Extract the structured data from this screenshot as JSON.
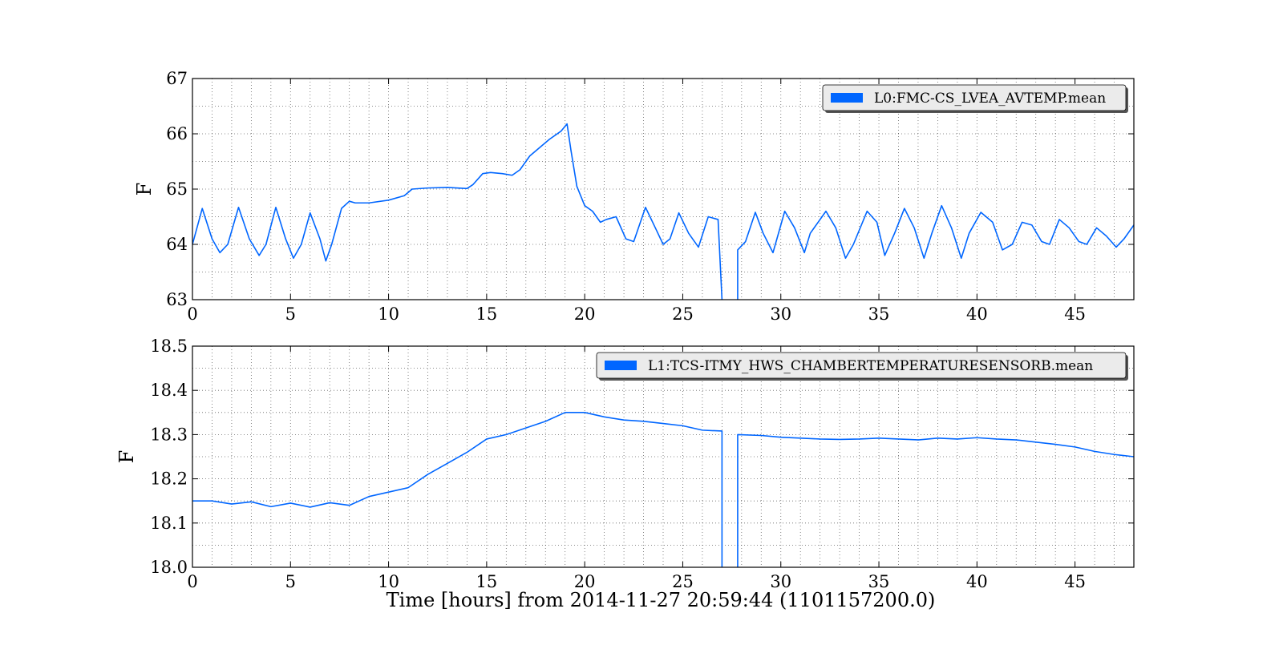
{
  "figure": {
    "xlabel": "Time [hours] from 2014-11-27 20:59:44 (1101157200.0)"
  },
  "chart_data": [
    {
      "type": "line",
      "ylabel": "F",
      "xlim": [
        0,
        48
      ],
      "ylim": [
        63,
        67
      ],
      "xticks": [
        0,
        5,
        10,
        15,
        20,
        25,
        30,
        35,
        40,
        45
      ],
      "xtick_labels": [
        "0",
        "5",
        "10",
        "15",
        "20",
        "25",
        "30",
        "35",
        "40",
        "45"
      ],
      "yticks": [
        63,
        64,
        65,
        66,
        67
      ],
      "ytick_labels": [
        "63",
        "64",
        "65",
        "66",
        "67"
      ],
      "grid": true,
      "legend_position": "top-right",
      "color": "#0066ff",
      "series": [
        {
          "name": "L0:FMC-CS_LVEA_AVTEMP.mean",
          "x": [
            0,
            0.5,
            1.0,
            1.4,
            1.8,
            2.35,
            2.9,
            3.4,
            3.75,
            4.25,
            4.75,
            5.15,
            5.55,
            6.0,
            6.5,
            6.8,
            7.1,
            7.6,
            8.0,
            8.3,
            9.0,
            10.0,
            10.8,
            11.2,
            12.0,
            13.0,
            14.0,
            14.3,
            14.8,
            15.2,
            15.8,
            16.3,
            16.7,
            17.2,
            18.2,
            18.8,
            19.1,
            19.3,
            19.6,
            20.0,
            20.4,
            20.8,
            21.1,
            21.6,
            22.1,
            22.5,
            23.1,
            23.6,
            24.0,
            24.35,
            24.8,
            25.3,
            25.8,
            26.3,
            26.8,
            27.0,
            27.0,
            null,
            27.8,
            27.8,
            28.2,
            28.7,
            29.1,
            29.6,
            30.2,
            30.7,
            31.2,
            31.5,
            32.3,
            32.8,
            33.3,
            33.7,
            34.4,
            34.9,
            35.3,
            35.8,
            36.3,
            36.8,
            37.3,
            37.7,
            38.2,
            38.7,
            39.2,
            39.6,
            40.2,
            40.8,
            41.3,
            41.8,
            42.3,
            42.8,
            43.3,
            43.7,
            44.2,
            44.7,
            45.2,
            45.6,
            46.1,
            46.6,
            47.1,
            47.5,
            48.0
          ],
          "y": [
            64.0,
            64.65,
            64.1,
            63.85,
            64.0,
            64.67,
            64.1,
            63.8,
            64.0,
            64.67,
            64.1,
            63.75,
            64.0,
            64.57,
            64.1,
            63.7,
            64.0,
            64.65,
            64.78,
            64.75,
            64.75,
            64.8,
            64.88,
            65.0,
            65.02,
            65.03,
            65.01,
            65.08,
            65.28,
            65.3,
            65.28,
            65.25,
            65.35,
            65.6,
            65.9,
            66.05,
            66.18,
            65.7,
            65.05,
            64.7,
            64.6,
            64.4,
            64.45,
            64.5,
            64.1,
            64.05,
            64.67,
            64.3,
            64.0,
            64.1,
            64.57,
            64.2,
            63.95,
            64.5,
            64.45,
            63.0,
            62.5,
            null,
            62.5,
            63.9,
            64.05,
            64.58,
            64.2,
            63.85,
            64.6,
            64.3,
            63.85,
            64.2,
            64.6,
            64.3,
            63.75,
            64.0,
            64.6,
            64.4,
            63.8,
            64.2,
            64.65,
            64.3,
            63.75,
            64.2,
            64.7,
            64.3,
            63.75,
            64.2,
            64.58,
            64.4,
            63.9,
            64.0,
            64.4,
            64.35,
            64.05,
            64.0,
            64.45,
            64.3,
            64.05,
            64.0,
            64.3,
            64.15,
            63.95,
            64.1,
            64.35
          ]
        }
      ]
    },
    {
      "type": "line",
      "ylabel": "F",
      "xlim": [
        0,
        48
      ],
      "ylim": [
        18.0,
        18.5
      ],
      "xticks": [
        0,
        5,
        10,
        15,
        20,
        25,
        30,
        35,
        40,
        45
      ],
      "xtick_labels": [
        "0",
        "5",
        "10",
        "15",
        "20",
        "25",
        "30",
        "35",
        "40",
        "45"
      ],
      "yticks": [
        18.0,
        18.1,
        18.2,
        18.3,
        18.4,
        18.5
      ],
      "ytick_labels": [
        "18.0",
        "18.1",
        "18.2",
        "18.3",
        "18.4",
        "18.5"
      ],
      "grid": true,
      "legend_position": "top-right",
      "color": "#0066ff",
      "series": [
        {
          "name": "L1:TCS-ITMY_HWS_CHAMBERTEMPERATURESENSORB.mean",
          "x": [
            0,
            1.0,
            2.0,
            3.0,
            4.0,
            5.0,
            6.0,
            7.0,
            8.0,
            9.0,
            10.0,
            11.0,
            12.0,
            13.0,
            14.0,
            15.0,
            16.0,
            17.0,
            18.0,
            19.0,
            20.0,
            21.0,
            22.0,
            23.0,
            24.0,
            25.0,
            26.0,
            27.0,
            27.0,
            null,
            27.8,
            27.8,
            29.0,
            30.0,
            31.0,
            32.0,
            33.0,
            34.0,
            35.0,
            36.0,
            37.0,
            38.0,
            39.0,
            40.0,
            41.0,
            42.0,
            43.0,
            44.0,
            45.0,
            46.0,
            47.0,
            48.0
          ],
          "y": [
            18.15,
            18.15,
            18.143,
            18.148,
            18.137,
            18.145,
            18.136,
            18.146,
            18.14,
            18.16,
            18.17,
            18.18,
            18.21,
            18.235,
            18.26,
            18.29,
            18.3,
            18.315,
            18.33,
            18.35,
            18.35,
            18.34,
            18.333,
            18.33,
            18.325,
            18.32,
            18.31,
            18.308,
            17.95,
            null,
            17.95,
            18.3,
            18.298,
            18.294,
            18.292,
            18.29,
            18.289,
            18.29,
            18.292,
            18.29,
            18.288,
            18.292,
            18.29,
            18.293,
            18.29,
            18.288,
            18.283,
            18.278,
            18.272,
            18.262,
            18.255,
            18.25
          ]
        }
      ]
    }
  ]
}
